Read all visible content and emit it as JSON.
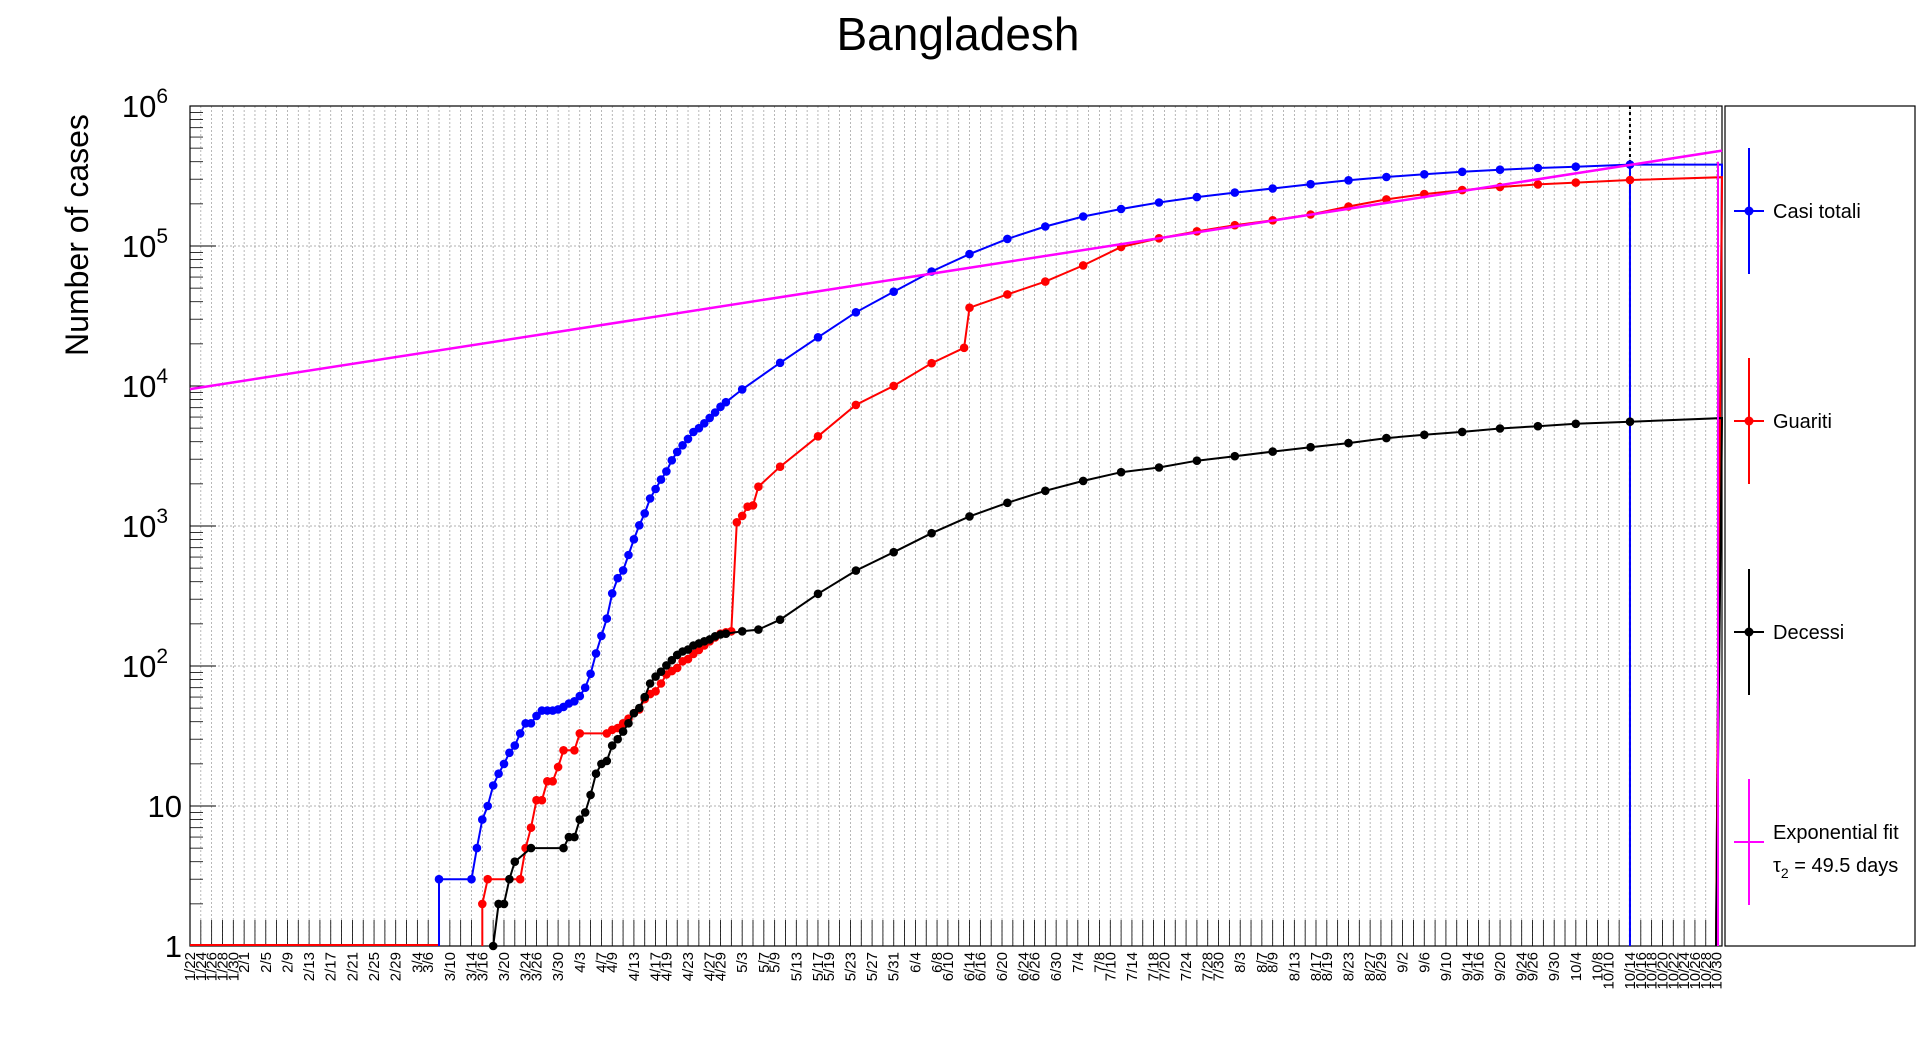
{
  "chart_data": {
    "type": "line",
    "title": "Bangladesh",
    "xlabel": "",
    "ylabel": "Number of cases",
    "y_scale": "log",
    "ylim": [
      1,
      1000000
    ],
    "grid": true,
    "legend_position": "right",
    "y_tick_labels": [
      {
        "value": 1,
        "base": "1",
        "exp": ""
      },
      {
        "value": 10,
        "base": "10",
        "exp": ""
      },
      {
        "value": 100,
        "base": "10",
        "exp": "2"
      },
      {
        "value": 1000,
        "base": "10",
        "exp": "3"
      },
      {
        "value": 10000,
        "base": "10",
        "exp": "4"
      },
      {
        "value": 100000,
        "base": "10",
        "exp": "5"
      },
      {
        "value": 1000000,
        "base": "10",
        "exp": "6"
      }
    ],
    "x_start": "1/22",
    "x_tick_labels": [
      "1/22",
      "1/24",
      "1/26",
      "1/28",
      "1/30",
      "2/1",
      "2/5",
      "2/9",
      "2/13",
      "2/17",
      "2/21",
      "2/25",
      "2/29",
      "3/4",
      "3/6",
      "3/10",
      "3/14",
      "3/16",
      "3/20",
      "3/24",
      "3/26",
      "3/30",
      "4/3",
      "4/7",
      "4/9",
      "4/13",
      "4/17",
      "4/19",
      "4/23",
      "4/27",
      "4/29",
      "5/3",
      "5/7",
      "5/9",
      "5/13",
      "5/17",
      "5/19",
      "5/23",
      "5/27",
      "5/31",
      "6/4",
      "6/8",
      "6/10",
      "6/14",
      "6/16",
      "6/20",
      "6/24",
      "6/26",
      "6/30",
      "7/4",
      "7/8",
      "7/10",
      "7/14",
      "7/18",
      "7/20",
      "7/24",
      "7/28",
      "7/30",
      "8/3",
      "8/7",
      "8/9",
      "8/13",
      "8/17",
      "8/19",
      "8/23",
      "8/27",
      "8/29",
      "9/2",
      "9/6",
      "9/10",
      "9/14",
      "9/16",
      "9/20",
      "9/24",
      "9/26",
      "9/30",
      "10/4",
      "10/8",
      "10/10",
      "10/14",
      "10/16",
      "10/18",
      "10/20",
      "10/22",
      "10/24",
      "10/26",
      "10/28",
      "10/30"
    ],
    "vertical_marker": "10/14",
    "series": [
      {
        "name": "Casi totali",
        "color": "#0000ff",
        "points": [
          [
            "3/8",
            3
          ],
          [
            "3/14",
            3
          ],
          [
            "3/15",
            5
          ],
          [
            "3/16",
            8
          ],
          [
            "3/17",
            10
          ],
          [
            "3/18",
            14
          ],
          [
            "3/19",
            17
          ],
          [
            "3/20",
            20
          ],
          [
            "3/21",
            24
          ],
          [
            "3/22",
            27
          ],
          [
            "3/23",
            33
          ],
          [
            "3/24",
            39
          ],
          [
            "3/25",
            39
          ],
          [
            "3/26",
            44
          ],
          [
            "3/27",
            48
          ],
          [
            "3/28",
            48
          ],
          [
            "3/29",
            48
          ],
          [
            "3/30",
            49
          ],
          [
            "3/31",
            51
          ],
          [
            "4/1",
            54
          ],
          [
            "4/2",
            56
          ],
          [
            "4/3",
            61
          ],
          [
            "4/4",
            70
          ],
          [
            "4/5",
            88
          ],
          [
            "4/6",
            123
          ],
          [
            "4/7",
            164
          ],
          [
            "4/8",
            218
          ],
          [
            "4/9",
            330
          ],
          [
            "4/10",
            424
          ],
          [
            "4/11",
            482
          ],
          [
            "4/12",
            621
          ],
          [
            "4/13",
            803
          ],
          [
            "4/14",
            1012
          ],
          [
            "4/15",
            1231
          ],
          [
            "4/16",
            1572
          ],
          [
            "4/17",
            1838
          ],
          [
            "4/18",
            2144
          ],
          [
            "4/19",
            2456
          ],
          [
            "4/20",
            2948
          ],
          [
            "4/21",
            3382
          ],
          [
            "4/22",
            3772
          ],
          [
            "4/23",
            4186
          ],
          [
            "4/24",
            4689
          ],
          [
            "4/25",
            4998
          ],
          [
            "4/26",
            5416
          ],
          [
            "4/27",
            5913
          ],
          [
            "4/28",
            6462
          ],
          [
            "4/29",
            7103
          ],
          [
            "4/30",
            7667
          ],
          [
            "5/3",
            9455
          ],
          [
            "5/10",
            14657
          ],
          [
            "5/17",
            22268
          ],
          [
            "5/24",
            33610
          ],
          [
            "5/31",
            47153
          ],
          [
            "6/7",
            65769
          ],
          [
            "6/14",
            87520
          ],
          [
            "6/21",
            112306
          ],
          [
            "6/28",
            137787
          ],
          [
            "7/5",
            162417
          ],
          [
            "7/12",
            183795
          ],
          [
            "7/19",
            204525
          ],
          [
            "7/26",
            223453
          ],
          [
            "8/2",
            240746
          ],
          [
            "8/9",
            257600
          ],
          [
            "8/16",
            276549
          ],
          [
            "8/23",
            294598
          ],
          [
            "8/30",
            310822
          ],
          [
            "9/6",
            325157
          ],
          [
            "9/13",
            338953
          ],
          [
            "9/20",
            350621
          ],
          [
            "9/27",
            360555
          ],
          [
            "10/4",
            368690
          ],
          [
            "10/14",
            381275
          ]
        ],
        "extension": [
          [
            "10/14",
            381275
          ],
          [
            "10/31",
            381275
          ]
        ]
      },
      {
        "name": "Guariti",
        "color": "#ff0000",
        "points": [
          [
            "3/16",
            2
          ],
          [
            "3/17",
            3
          ],
          [
            "3/23",
            3
          ],
          [
            "3/24",
            5
          ],
          [
            "3/25",
            7
          ],
          [
            "3/26",
            11
          ],
          [
            "3/27",
            11
          ],
          [
            "3/28",
            15
          ],
          [
            "3/29",
            15
          ],
          [
            "3/30",
            19
          ],
          [
            "3/31",
            25
          ],
          [
            "4/2",
            25
          ],
          [
            "4/3",
            33
          ],
          [
            "4/8",
            33
          ],
          [
            "4/9",
            35
          ],
          [
            "4/10",
            36
          ],
          [
            "4/11",
            39
          ],
          [
            "4/12",
            42
          ],
          [
            "4/13",
            46
          ],
          [
            "4/14",
            49
          ],
          [
            "4/15",
            58
          ],
          [
            "4/16",
            63
          ],
          [
            "4/17",
            66
          ],
          [
            "4/18",
            75
          ],
          [
            "4/19",
            87
          ],
          [
            "4/20",
            92
          ],
          [
            "4/21",
            97
          ],
          [
            "4/22",
            108
          ],
          [
            "4/23",
            112
          ],
          [
            "4/24",
            122
          ],
          [
            "4/25",
            130
          ],
          [
            "4/26",
            140
          ],
          [
            "4/27",
            150
          ],
          [
            "4/28",
            160
          ],
          [
            "4/29",
            170
          ],
          [
            "4/30",
            174
          ],
          [
            "5/1",
            177
          ],
          [
            "5/2",
            1063
          ],
          [
            "5/3",
            1180
          ],
          [
            "5/4",
            1373
          ],
          [
            "5/5",
            1403
          ],
          [
            "5/6",
            1910
          ],
          [
            "5/10",
            2650
          ],
          [
            "5/17",
            4373
          ],
          [
            "5/24",
            7334
          ],
          [
            "5/31",
            10016
          ],
          [
            "6/7",
            14560
          ],
          [
            "6/13",
            18730
          ],
          [
            "6/14",
            36264
          ],
          [
            "6/21",
            45077
          ],
          [
            "6/28",
            55727
          ],
          [
            "7/5",
            72625
          ],
          [
            "7/12",
            98317
          ],
          [
            "7/19",
            113556
          ],
          [
            "7/26",
            127414
          ],
          [
            "8/2",
            140834
          ],
          [
            "8/9",
            152713
          ],
          [
            "8/16",
            168011
          ],
          [
            "8/23",
            191617
          ],
          [
            "8/30",
            215089
          ],
          [
            "9/6",
            235001
          ],
          [
            "9/13",
            250627
          ],
          [
            "9/20",
            264056
          ],
          [
            "9/27",
            275544
          ],
          [
            "10/4",
            283513
          ],
          [
            "10/14",
            296000
          ]
        ],
        "extension": [
          [
            "10/14",
            296000
          ],
          [
            "10/31",
            310000
          ]
        ]
      },
      {
        "name": "Decessi",
        "color": "#000000",
        "points": [
          [
            "3/18",
            1
          ],
          [
            "3/19",
            2
          ],
          [
            "3/20",
            2
          ],
          [
            "3/21",
            3
          ],
          [
            "3/22",
            4
          ],
          [
            "3/25",
            5
          ],
          [
            "3/31",
            5
          ],
          [
            "4/1",
            6
          ],
          [
            "4/2",
            6
          ],
          [
            "4/3",
            8
          ],
          [
            "4/4",
            9
          ],
          [
            "4/5",
            12
          ],
          [
            "4/6",
            17
          ],
          [
            "4/7",
            20
          ],
          [
            "4/8",
            21
          ],
          [
            "4/9",
            27
          ],
          [
            "4/10",
            30
          ],
          [
            "4/11",
            34
          ],
          [
            "4/12",
            39
          ],
          [
            "4/13",
            46
          ],
          [
            "4/14",
            50
          ],
          [
            "4/15",
            60
          ],
          [
            "4/16",
            75
          ],
          [
            "4/17",
            84
          ],
          [
            "4/18",
            91
          ],
          [
            "4/19",
            101
          ],
          [
            "4/20",
            110
          ],
          [
            "4/21",
            120
          ],
          [
            "4/22",
            127
          ],
          [
            "4/23",
            131
          ],
          [
            "4/24",
            140
          ],
          [
            "4/25",
            145
          ],
          [
            "4/26",
            150
          ],
          [
            "4/27",
            155
          ],
          [
            "4/28",
            163
          ],
          [
            "4/29",
            168
          ],
          [
            "4/30",
            170
          ],
          [
            "5/3",
            177
          ],
          [
            "5/6",
            182
          ],
          [
            "5/10",
            214
          ],
          [
            "5/17",
            328
          ],
          [
            "5/24",
            480
          ],
          [
            "5/31",
            650
          ],
          [
            "6/7",
            888
          ],
          [
            "6/14",
            1171
          ],
          [
            "6/21",
            1464
          ],
          [
            "6/28",
            1783
          ],
          [
            "7/5",
            2098
          ],
          [
            "7/12",
            2424
          ],
          [
            "7/19",
            2618
          ],
          [
            "7/26",
            2928
          ],
          [
            "8/2",
            3154
          ],
          [
            "8/9",
            3399
          ],
          [
            "8/16",
            3657
          ],
          [
            "8/23",
            3907
          ],
          [
            "8/30",
            4248
          ],
          [
            "9/6",
            4479
          ],
          [
            "9/13",
            4702
          ],
          [
            "9/20",
            4969
          ],
          [
            "9/27",
            5161
          ],
          [
            "10/4",
            5369
          ],
          [
            "10/14",
            5555
          ]
        ],
        "extension": [
          [
            "10/14",
            5555
          ],
          [
            "10/31",
            5900
          ]
        ]
      },
      {
        "name": "Exponential fit",
        "color": "#ff00ff",
        "fit_label": "τ",
        "fit_label_sub": "2",
        "fit_label_rest": "= 49.5 days",
        "fit_start": [
          "1/22",
          9500
        ],
        "fit_end": [
          "10/31",
          480000
        ]
      }
    ]
  }
}
